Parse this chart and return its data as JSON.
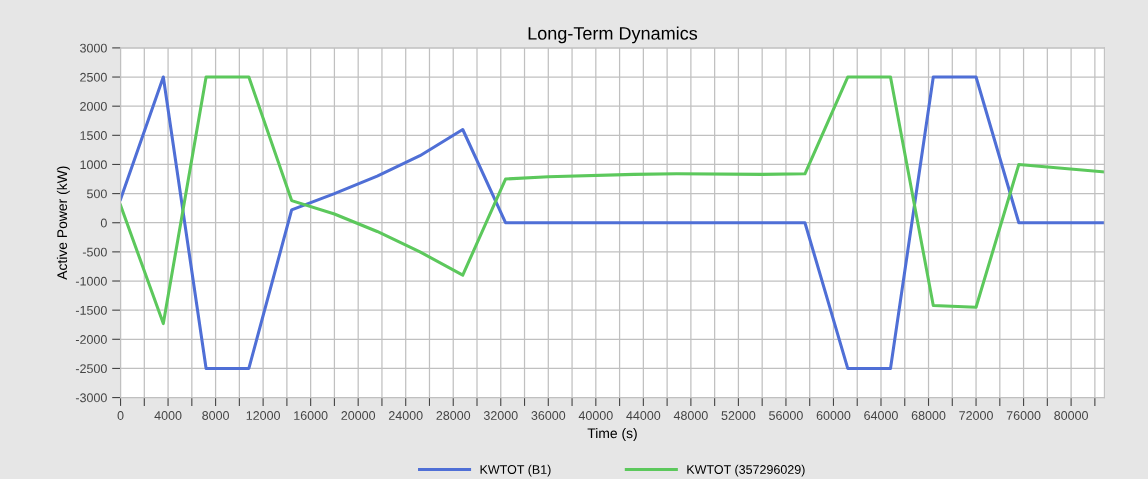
{
  "chart_data": {
    "type": "line",
    "title": "Long-Term Dynamics",
    "xlabel": "Time (s)",
    "ylabel": "Active Power (kW)",
    "series": [
      {
        "name": "KWTOT (B1)",
        "color": "#4f6fd6",
        "x": [
          0,
          3600,
          7200,
          10800,
          14400,
          18000,
          21600,
          25200,
          28800,
          32400,
          57600,
          61200,
          64800,
          68400,
          72000,
          75600,
          82800
        ],
        "values": [
          400,
          2500,
          -2500,
          -2500,
          220,
          500,
          800,
          1150,
          1600,
          0,
          0,
          -2500,
          -2500,
          2500,
          2500,
          0,
          0
        ]
      },
      {
        "name": "KWTOT (357296029)",
        "color": "#5cc85c",
        "x": [
          0,
          3600,
          7200,
          10800,
          14400,
          18000,
          21600,
          25200,
          28800,
          32400,
          36000,
          43200,
          46800,
          54000,
          57600,
          61200,
          64800,
          68400,
          72000,
          75600,
          82800
        ],
        "values": [
          300,
          -1730,
          2500,
          2500,
          380,
          150,
          -150,
          -500,
          -900,
          750,
          790,
          830,
          840,
          830,
          840,
          2500,
          2500,
          -1420,
          -1450,
          1000,
          870
        ]
      }
    ],
    "xlim": [
      0,
      82800
    ],
    "xticks": [
      0,
      {
        "value": 2000,
        "label": null
      },
      4000,
      {
        "value": 6000,
        "label": null
      },
      8000,
      {
        "value": 10000,
        "label": null
      },
      12000,
      {
        "value": 14000,
        "label": null
      },
      16000,
      {
        "value": 18000,
        "label": null
      },
      20000,
      {
        "value": 22000,
        "label": null
      },
      24000,
      {
        "value": 26000,
        "label": null
      },
      28000,
      {
        "value": 30000,
        "label": null
      },
      32000,
      {
        "value": 34000,
        "label": null
      },
      36000,
      {
        "value": 38000,
        "label": null
      },
      40000,
      {
        "value": 42000,
        "label": null
      },
      44000,
      {
        "value": 46000,
        "label": null
      },
      48000,
      {
        "value": 50000,
        "label": null
      },
      52000,
      {
        "value": 54000,
        "label": null
      },
      56000,
      {
        "value": 58000,
        "label": null
      },
      60000,
      {
        "value": 62000,
        "label": null
      },
      64000,
      {
        "value": 66000,
        "label": null
      },
      68000,
      {
        "value": 70000,
        "label": null
      },
      72000,
      {
        "value": 74000,
        "label": null
      },
      76000,
      {
        "value": 78000,
        "label": null
      },
      80000,
      {
        "value": 82000,
        "label": null
      }
    ],
    "ylim": [
      -3000,
      3000
    ],
    "yticks": [
      -3000,
      -2500,
      -2000,
      -1500,
      -1000,
      -500,
      0,
      500,
      1000,
      1500,
      2000,
      2500,
      3000
    ],
    "grid": true,
    "legend": "bottom",
    "marker": "none",
    "line_style": "solid"
  }
}
